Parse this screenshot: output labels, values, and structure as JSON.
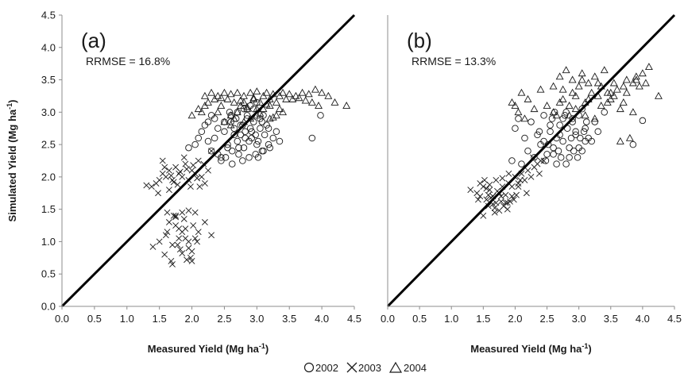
{
  "legend": [
    {
      "name": "2002",
      "marker": "circle"
    },
    {
      "name": "2003",
      "marker": "x"
    },
    {
      "name": "2004",
      "marker": "triangle"
    }
  ],
  "chart_data": [
    {
      "type": "scatter",
      "panel_label": "(a)",
      "annotation": "RRMSE = 16.8%",
      "xlabel": "Measured Yield (Mg ha",
      "ylabel": "Simulated Yield (Mg ha",
      "unit_superscript": "-1",
      "unit_close": ")",
      "xlim": [
        0,
        4.5
      ],
      "ylim": [
        0,
        4.5
      ],
      "xticks": [
        "0.0",
        "0.5",
        "1.0",
        "1.5",
        "2.0",
        "2.5",
        "3.0",
        "3.5",
        "4.0",
        "4.5"
      ],
      "yticks": [
        "0.0",
        "0.5",
        "1.0",
        "1.5",
        "2.0",
        "2.5",
        "3.0",
        "3.5",
        "4.0",
        "4.5"
      ],
      "reference_line": "1:1",
      "series": [
        {
          "name": "2002",
          "marker": "circle",
          "x": [
            1.95,
            2.05,
            2.1,
            2.15,
            2.2,
            2.25,
            2.3,
            2.35,
            2.4,
            2.45,
            2.5,
            2.55,
            2.6,
            2.62,
            2.65,
            2.7,
            2.72,
            2.75,
            2.78,
            2.8,
            2.82,
            2.85,
            2.88,
            2.9,
            2.92,
            2.95,
            2.98,
            3.0,
            3.02,
            3.05,
            3.08,
            3.1,
            3.12,
            3.15,
            3.18,
            3.2,
            3.25,
            3.3,
            3.35,
            3.85,
            3.98,
            2.45,
            2.55,
            2.65,
            2.75,
            2.85,
            2.95,
            3.05,
            2.35,
            2.5,
            2.6,
            2.7,
            2.8,
            2.9,
            3.0,
            3.1,
            2.3,
            2.4,
            2.58,
            2.68,
            2.78,
            2.88,
            2.98,
            3.08,
            3.18,
            2.25,
            2.52,
            2.62,
            2.72,
            2.82,
            2.92,
            3.02
          ],
          "y": [
            2.45,
            2.5,
            2.6,
            2.7,
            2.8,
            2.55,
            2.4,
            2.9,
            2.75,
            2.3,
            2.85,
            2.5,
            2.95,
            2.2,
            2.65,
            3.0,
            2.35,
            2.8,
            2.25,
            3.05,
            2.6,
            2.9,
            2.3,
            3.1,
            2.7,
            2.85,
            2.35,
            3.15,
            2.55,
            2.75,
            2.4,
            2.95,
            2.65,
            2.8,
            2.5,
            2.45,
            2.6,
            2.7,
            2.55,
            2.6,
            2.95,
            2.25,
            2.45,
            2.75,
            2.65,
            2.95,
            3.05,
            2.9,
            2.6,
            2.7,
            2.85,
            2.55,
            2.45,
            2.75,
            2.5,
            2.4,
            2.95,
            2.35,
            3.0,
            2.9,
            2.8,
            2.55,
            2.65,
            2.85,
            2.75,
            2.85,
            2.3,
            2.4,
            2.45,
            2.7,
            2.6,
            2.3
          ]
        },
        {
          "name": "2003",
          "marker": "x",
          "x": [
            1.3,
            1.38,
            1.45,
            1.5,
            1.55,
            1.6,
            1.65,
            1.7,
            1.75,
            1.8,
            1.85,
            1.9,
            1.95,
            2.0,
            2.05,
            2.1,
            2.15,
            2.2,
            2.25,
            2.3,
            1.55,
            1.65,
            1.72,
            1.82,
            1.88,
            1.98,
            2.08,
            2.18,
            1.48,
            1.58,
            1.68,
            1.78,
            1.92,
            2.02,
            2.12,
            1.62,
            1.75,
            1.85,
            1.95,
            2.05,
            1.4,
            1.5,
            1.6,
            1.7,
            1.8,
            1.9,
            2.0,
            2.1,
            2.2,
            2.3,
            1.65,
            1.75,
            1.85,
            1.95,
            2.05,
            1.58,
            1.68,
            1.78,
            1.88,
            1.98,
            2.08,
            1.72,
            1.82,
            1.92,
            2.02,
            1.62,
            1.7,
            1.8,
            1.9,
            2.0,
            1.75,
            1.85,
            1.95
          ],
          "y": [
            1.87,
            1.85,
            1.9,
            1.95,
            2.05,
            2.0,
            2.1,
            1.95,
            2.15,
            2.05,
            2.0,
            2.2,
            1.95,
            2.1,
            2.05,
            2.25,
            2.0,
            1.9,
            2.1,
            2.4,
            2.25,
            1.8,
            1.92,
            2.08,
            2.3,
            1.85,
            1.98,
            2.2,
            1.75,
            2.15,
            2.02,
            1.88,
            2.12,
            2.18,
            1.85,
            1.45,
            1.4,
            1.45,
            1.48,
            1.45,
            0.92,
            1.0,
            1.1,
            0.95,
            1.2,
            1.05,
            0.85,
            1.15,
            1.3,
            1.1,
            1.3,
            1.25,
            1.15,
            0.9,
            1.05,
            0.8,
            0.7,
            0.95,
            1.35,
            0.75,
            1.0,
            1.4,
            0.88,
            0.72,
            1.25,
            1.15,
            0.65,
            1.05,
            1.2,
            0.7,
            1.38,
            0.82,
            1.0
          ]
        },
        {
          "name": "2004",
          "marker": "triangle",
          "x": [
            2.0,
            2.1,
            2.15,
            2.2,
            2.25,
            2.3,
            2.35,
            2.4,
            2.45,
            2.5,
            2.55,
            2.6,
            2.65,
            2.7,
            2.75,
            2.8,
            2.85,
            2.9,
            2.95,
            3.0,
            3.05,
            3.1,
            3.15,
            3.2,
            3.25,
            3.3,
            3.35,
            3.4,
            3.5,
            3.6,
            3.7,
            3.8,
            3.9,
            4.0,
            4.1,
            4.2,
            4.38,
            2.2,
            2.4,
            2.6,
            2.8,
            3.0,
            3.2,
            3.4,
            2.5,
            2.7,
            2.9,
            3.1,
            3.3,
            2.6,
            2.8,
            3.0,
            3.2,
            2.75,
            2.95,
            3.15,
            3.35,
            3.55,
            3.75,
            3.95,
            2.65,
            2.85,
            3.05,
            3.25,
            2.45,
            3.45,
            3.65,
            3.85
          ],
          "y": [
            2.95,
            3.05,
            3.0,
            3.25,
            3.15,
            3.3,
            3.2,
            3.25,
            3.1,
            3.3,
            3.2,
            3.28,
            3.15,
            3.3,
            3.1,
            3.25,
            3.05,
            3.3,
            3.2,
            3.32,
            3.15,
            3.25,
            3.3,
            3.2,
            3.28,
            3.15,
            3.25,
            3.3,
            3.28,
            3.25,
            3.3,
            3.28,
            3.35,
            3.3,
            3.25,
            3.15,
            3.1,
            3.1,
            3.0,
            2.95,
            3.15,
            3.05,
            3.1,
            3.0,
            2.85,
            3.0,
            2.9,
            3.05,
            2.95,
            2.8,
            2.85,
            2.95,
            2.9,
            3.18,
            3.22,
            3.12,
            3.05,
            3.2,
            3.18,
            3.1,
            2.9,
            3.08,
            2.98,
            2.92,
            3.22,
            3.2,
            3.22,
            3.15
          ]
        }
      ]
    },
    {
      "type": "scatter",
      "panel_label": "(b)",
      "annotation": "RRMSE = 13.3%",
      "xlabel": "Measured Yield (Mg ha",
      "ylabel": "",
      "unit_superscript": "-1",
      "unit_close": ")",
      "xlim": [
        0,
        4.5
      ],
      "ylim": [
        0,
        4.5
      ],
      "xticks": [
        "0.0",
        "0.5",
        "1.0",
        "1.5",
        "2.0",
        "2.5",
        "3.0",
        "3.5",
        "4.0",
        "4.5"
      ],
      "yticks": [],
      "reference_line": "1:1",
      "series": [
        {
          "name": "2002",
          "marker": "circle",
          "x": [
            1.95,
            2.0,
            2.05,
            2.1,
            2.15,
            2.2,
            2.25,
            2.3,
            2.35,
            2.4,
            2.45,
            2.5,
            2.55,
            2.6,
            2.65,
            2.7,
            2.75,
            2.8,
            2.85,
            2.9,
            2.95,
            3.0,
            3.05,
            3.1,
            3.15,
            3.2,
            3.25,
            3.3,
            3.4,
            3.85,
            4.0,
            2.55,
            2.65,
            2.75,
            2.85,
            2.95,
            3.05,
            2.45,
            2.6,
            2.7,
            2.8,
            2.9,
            3.0,
            3.1,
            2.38,
            2.52,
            2.62,
            2.72,
            2.82,
            2.92,
            3.02,
            3.12,
            2.48,
            2.58,
            2.68,
            2.78,
            2.88,
            2.98,
            3.08
          ],
          "y": [
            2.25,
            2.75,
            2.9,
            2.2,
            2.6,
            2.4,
            2.85,
            2.3,
            2.65,
            2.5,
            2.95,
            2.35,
            2.7,
            2.45,
            2.2,
            2.8,
            2.55,
            3.0,
            2.3,
            2.9,
            2.65,
            2.95,
            2.4,
            2.75,
            2.6,
            2.55,
            2.85,
            2.7,
            3.0,
            2.5,
            2.87,
            2.8,
            2.6,
            2.9,
            2.45,
            2.7,
            3.05,
            2.55,
            2.35,
            2.65,
            2.2,
            2.85,
            2.45,
            2.55,
            2.7,
            2.5,
            3.0,
            2.3,
            2.75,
            2.4,
            2.6,
            2.85,
            2.25,
            2.9,
            2.4,
            2.95,
            2.6,
            2.3,
            2.7
          ]
        },
        {
          "name": "2003",
          "marker": "x",
          "x": [
            1.3,
            1.4,
            1.45,
            1.5,
            1.55,
            1.6,
            1.65,
            1.7,
            1.75,
            1.8,
            1.85,
            1.9,
            1.95,
            2.0,
            2.05,
            2.1,
            2.15,
            2.2,
            2.25,
            2.3,
            2.35,
            2.4,
            1.5,
            1.58,
            1.68,
            1.78,
            1.88,
            1.98,
            2.08,
            2.18,
            1.45,
            1.55,
            1.65,
            1.75,
            1.85,
            1.95,
            2.05,
            1.62,
            1.72,
            1.82,
            1.92,
            2.02,
            1.52,
            1.6,
            1.7,
            1.8,
            1.9,
            1.42,
            1.58,
            1.68,
            1.78,
            1.88,
            2.28,
            2.38,
            2.45
          ],
          "y": [
            1.8,
            1.75,
            1.7,
            1.85,
            1.65,
            1.8,
            1.7,
            1.6,
            1.75,
            1.85,
            1.6,
            1.9,
            1.7,
            2.0,
            1.85,
            2.05,
            1.95,
            2.1,
            2.0,
            2.15,
            2.2,
            2.25,
            1.4,
            1.55,
            1.45,
            1.62,
            1.5,
            1.65,
            1.95,
            1.75,
            1.9,
            1.82,
            1.58,
            1.48,
            1.72,
            1.85,
            1.9,
            1.68,
            1.78,
            1.55,
            1.62,
            1.72,
            1.95,
            1.88,
            1.95,
            1.98,
            2.05,
            1.65,
            1.72,
            1.52,
            1.7,
            1.6,
            2.3,
            2.05,
            2.25
          ]
        },
        {
          "name": "2004",
          "marker": "triangle",
          "x": [
            1.95,
            2.0,
            2.05,
            2.1,
            2.15,
            2.2,
            2.3,
            2.4,
            2.5,
            2.6,
            2.65,
            2.7,
            2.75,
            2.8,
            2.85,
            2.9,
            2.95,
            3.0,
            3.05,
            3.1,
            3.15,
            3.2,
            3.25,
            3.3,
            3.35,
            3.4,
            3.45,
            3.5,
            3.55,
            3.6,
            3.65,
            3.7,
            3.75,
            3.8,
            3.85,
            3.9,
            3.95,
            4.0,
            4.05,
            4.1,
            4.25,
            2.6,
            2.75,
            2.95,
            3.15,
            3.35,
            3.55,
            3.75,
            2.85,
            3.05,
            3.25,
            3.45,
            3.65,
            3.85,
            2.7,
            2.9,
            3.1,
            3.3,
            3.5,
            3.7,
            3.9
          ],
          "y": [
            3.15,
            3.1,
            3.0,
            3.3,
            2.9,
            3.2,
            3.05,
            3.35,
            3.1,
            3.4,
            2.95,
            3.55,
            3.2,
            3.65,
            3.1,
            3.5,
            3.25,
            3.4,
            3.6,
            3.15,
            3.45,
            3.3,
            3.55,
            3.25,
            3.4,
            3.65,
            3.3,
            3.2,
            3.45,
            3.35,
            2.55,
            3.4,
            3.5,
            2.6,
            3.45,
            3.55,
            3.4,
            3.6,
            3.45,
            3.7,
            3.25,
            3.0,
            3.35,
            3.05,
            3.2,
            3.1,
            3.25,
            3.3,
            2.95,
            3.5,
            2.9,
            3.15,
            3.05,
            3.0,
            3.15,
            3.3,
            2.95,
            3.45,
            3.3,
            3.15,
            3.5
          ]
        }
      ]
    }
  ]
}
